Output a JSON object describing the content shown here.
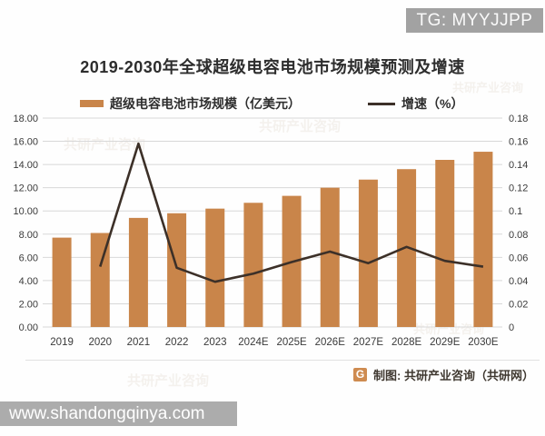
{
  "badge": {
    "text": "TG: MYYJJPP"
  },
  "watermark_text": "共研产业咨询",
  "chart_data": {
    "type": "bar",
    "title": "2019-2030年全球超级电容电池市场规模预测及增速",
    "categories": [
      "2019",
      "2020",
      "2021",
      "2022",
      "2023",
      "2024E",
      "2025E",
      "2026E",
      "2027E",
      "2028E",
      "2029E",
      "2030E"
    ],
    "series": [
      {
        "name": "超级电容电池市场规模（亿美元）",
        "type": "bar",
        "axis": "left",
        "color": "#c9854a",
        "values": [
          7.7,
          8.1,
          9.4,
          9.8,
          10.2,
          10.7,
          11.3,
          12.0,
          12.7,
          13.6,
          14.4,
          15.1
        ]
      },
      {
        "name": "增速（%）",
        "type": "line",
        "axis": "right",
        "color": "#3c3028",
        "values": [
          null,
          0.052,
          0.158,
          0.051,
          0.039,
          0.046,
          0.056,
          0.065,
          0.055,
          0.069,
          0.057,
          0.052
        ]
      }
    ],
    "left_axis": {
      "min": 0,
      "max": 18,
      "step": 2,
      "labels": [
        "0.00",
        "2.00",
        "4.00",
        "6.00",
        "8.00",
        "10.00",
        "12.00",
        "14.00",
        "16.00",
        "18.00"
      ]
    },
    "right_axis": {
      "min": 0,
      "max": 0.18,
      "step": 0.02,
      "labels": [
        "0",
        "0.02",
        "0.04",
        "0.06",
        "0.08",
        "0.1",
        "0.12",
        "0.14",
        "0.16",
        "0.18"
      ]
    },
    "grid": true,
    "legend_position": "top",
    "tick_color": "#3a3a3a",
    "grid_color": "#d8d8d8"
  },
  "footer": {
    "credit_label": "制图: 共研产业咨询（共研网）",
    "logo_glyph": "G"
  },
  "bottom_bar": {
    "url": "www.shandongqinya.com"
  }
}
